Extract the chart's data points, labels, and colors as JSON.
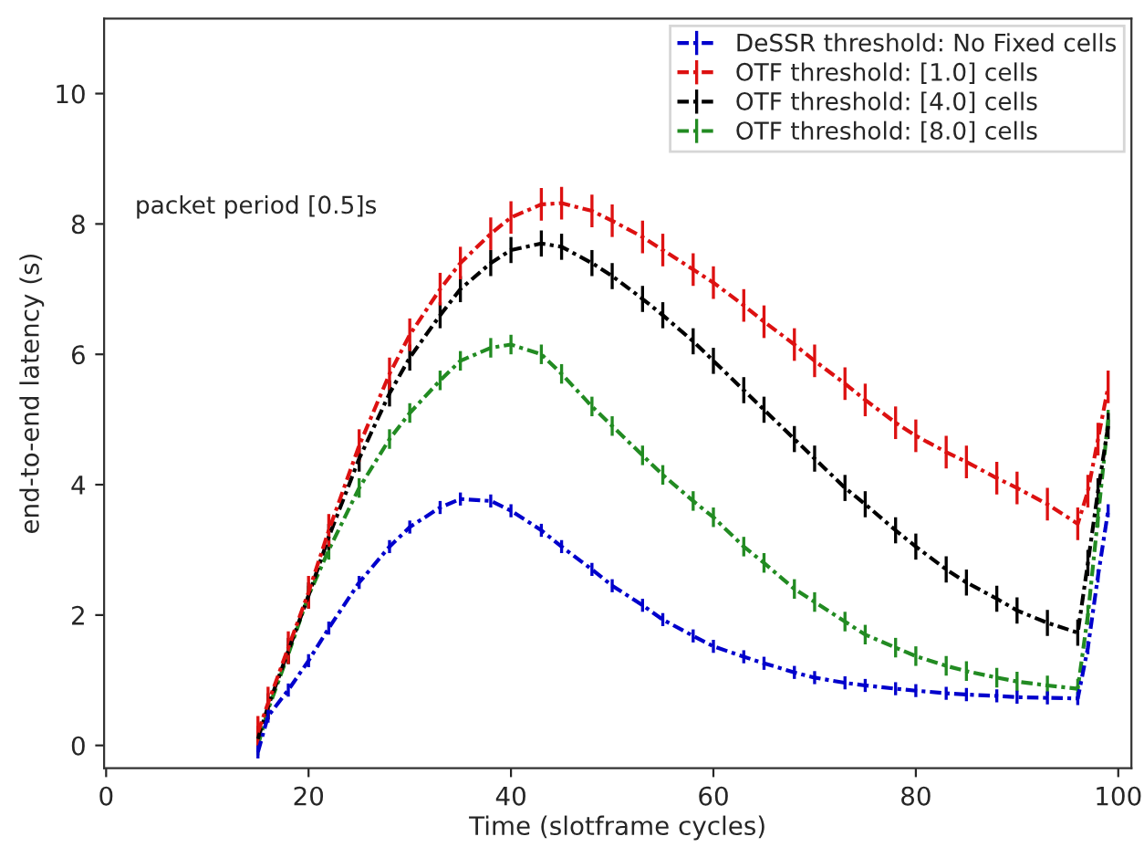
{
  "chart_data": {
    "type": "line",
    "xlabel": "Time (slotframe cycles)",
    "ylabel": "end-to-end latency (s)",
    "annotations": [
      "packet period [0.5]s"
    ],
    "x": [
      15,
      16,
      18,
      20,
      22,
      25,
      28,
      30,
      33,
      35,
      38,
      40,
      43,
      45,
      48,
      50,
      53,
      55,
      58,
      60,
      63,
      65,
      68,
      70,
      73,
      75,
      78,
      80,
      83,
      85,
      88,
      90,
      93,
      96,
      97,
      98,
      99
    ],
    "xlim": [
      -0.2,
      101.3
    ],
    "xticks": [
      0,
      20,
      40,
      60,
      80,
      100
    ],
    "ylim": [
      -0.35,
      11.15
    ],
    "yticks": [
      0,
      2,
      4,
      6,
      8,
      10
    ],
    "grid": false,
    "legend": "top right",
    "marker": "none",
    "line_style": "dashed",
    "series": [
      {
        "name": "DeSSR threshold: No Fixed cells",
        "color": "#0000cc",
        "values": [
          -0.1,
          0.45,
          0.85,
          1.3,
          1.8,
          2.5,
          3.05,
          3.35,
          3.65,
          3.78,
          3.75,
          3.6,
          3.3,
          3.05,
          2.7,
          2.45,
          2.15,
          1.93,
          1.68,
          1.52,
          1.36,
          1.26,
          1.12,
          1.04,
          0.96,
          0.92,
          0.87,
          0.84,
          0.8,
          0.78,
          0.76,
          0.74,
          0.73,
          0.72,
          1.5,
          2.6,
          3.6
        ],
        "errors": [
          0.1,
          0.1,
          0.1,
          0.1,
          0.1,
          0.1,
          0.1,
          0.1,
          0.1,
          0.1,
          0.1,
          0.1,
          0.1,
          0.1,
          0.1,
          0.1,
          0.1,
          0.1,
          0.1,
          0.1,
          0.1,
          0.1,
          0.1,
          0.1,
          0.1,
          0.1,
          0.1,
          0.1,
          0.1,
          0.1,
          0.1,
          0.1,
          0.1,
          0.1,
          0.1,
          0.1,
          0.1
        ]
      },
      {
        "name": "OTF threshold: [1.0] cells",
        "color": "#dd1111",
        "values": [
          0.2,
          0.65,
          1.5,
          2.35,
          3.3,
          4.6,
          5.7,
          6.3,
          7.0,
          7.4,
          7.85,
          8.1,
          8.3,
          8.32,
          8.2,
          8.05,
          7.8,
          7.6,
          7.3,
          7.1,
          6.75,
          6.5,
          6.15,
          5.9,
          5.55,
          5.3,
          4.95,
          4.75,
          4.5,
          4.35,
          4.1,
          3.95,
          3.7,
          3.4,
          3.9,
          4.7,
          5.5
        ],
        "errors": [
          0.25,
          0.25,
          0.25,
          0.25,
          0.25,
          0.25,
          0.25,
          0.25,
          0.25,
          0.25,
          0.25,
          0.25,
          0.25,
          0.25,
          0.25,
          0.25,
          0.25,
          0.25,
          0.25,
          0.25,
          0.25,
          0.25,
          0.25,
          0.25,
          0.25,
          0.25,
          0.25,
          0.25,
          0.25,
          0.25,
          0.25,
          0.25,
          0.25,
          0.25,
          0.25,
          0.25,
          0.25
        ]
      },
      {
        "name": "OTF threshold: [4.0] cells",
        "color": "#000000",
        "values": [
          0.1,
          0.6,
          1.45,
          2.3,
          3.2,
          4.4,
          5.4,
          5.95,
          6.6,
          7.0,
          7.4,
          7.6,
          7.7,
          7.65,
          7.4,
          7.2,
          6.85,
          6.6,
          6.2,
          5.9,
          5.45,
          5.15,
          4.7,
          4.4,
          3.95,
          3.7,
          3.3,
          3.05,
          2.7,
          2.5,
          2.25,
          2.07,
          1.88,
          1.73,
          2.8,
          3.9,
          4.9
        ],
        "errors": [
          0.2,
          0.2,
          0.2,
          0.2,
          0.2,
          0.2,
          0.2,
          0.2,
          0.2,
          0.2,
          0.2,
          0.2,
          0.2,
          0.2,
          0.2,
          0.2,
          0.2,
          0.2,
          0.2,
          0.2,
          0.2,
          0.2,
          0.2,
          0.2,
          0.2,
          0.2,
          0.2,
          0.2,
          0.2,
          0.2,
          0.2,
          0.2,
          0.2,
          0.2,
          0.2,
          0.2,
          0.2
        ]
      },
      {
        "name": "OTF threshold: [8.0] cells",
        "color": "#228b22",
        "values": [
          0.0,
          0.55,
          1.4,
          2.3,
          3.0,
          3.95,
          4.7,
          5.1,
          5.6,
          5.9,
          6.1,
          6.15,
          6.0,
          5.7,
          5.2,
          4.9,
          4.45,
          4.15,
          3.75,
          3.5,
          3.05,
          2.8,
          2.4,
          2.2,
          1.9,
          1.7,
          1.5,
          1.37,
          1.22,
          1.14,
          1.04,
          0.98,
          0.92,
          0.87,
          2.0,
          3.5,
          5.0
        ],
        "errors": [
          0.15,
          0.15,
          0.15,
          0.15,
          0.15,
          0.15,
          0.15,
          0.15,
          0.15,
          0.15,
          0.15,
          0.15,
          0.15,
          0.15,
          0.15,
          0.15,
          0.15,
          0.15,
          0.15,
          0.15,
          0.15,
          0.15,
          0.15,
          0.15,
          0.15,
          0.15,
          0.15,
          0.15,
          0.15,
          0.15,
          0.15,
          0.15,
          0.15,
          0.15,
          0.15,
          0.15,
          0.15
        ]
      }
    ]
  }
}
